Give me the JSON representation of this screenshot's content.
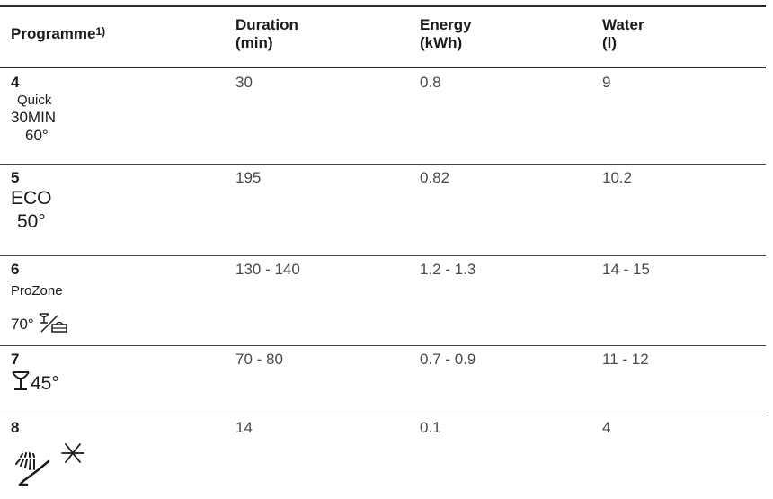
{
  "header": {
    "programme": "Programme",
    "programme_note": "1)",
    "duration_l1": "Duration",
    "duration_l2": "(min)",
    "energy_l1": "Energy",
    "energy_l2": "(kWh)",
    "water_l1": "Water",
    "water_l2": "(l)"
  },
  "rows": [
    {
      "num": "4",
      "sym": [
        "Quick",
        "30MIN",
        "60°"
      ],
      "duration": "30",
      "energy": "0.8",
      "water": "9"
    },
    {
      "num": "5",
      "sym": [
        "ECO",
        "50°"
      ],
      "duration": "195",
      "energy": "0.82",
      "water": "10.2"
    },
    {
      "num": "6",
      "sym": [
        "ProZone",
        "70°"
      ],
      "icons": [
        "glass-plate-icon"
      ],
      "duration": "130 - 140",
      "energy": "1.2 - 1.3",
      "water": "14 - 15"
    },
    {
      "num": "7",
      "sym": [
        "45°"
      ],
      "icons": [
        "wine-glass-icon"
      ],
      "duration": "70 - 80",
      "energy": "0.7 - 0.9",
      "water": "11 - 12"
    },
    {
      "num": "8",
      "icons": [
        "rinse-icon",
        "cold-star-icon"
      ],
      "duration": "14",
      "energy": "0.1",
      "water": "4"
    }
  ]
}
